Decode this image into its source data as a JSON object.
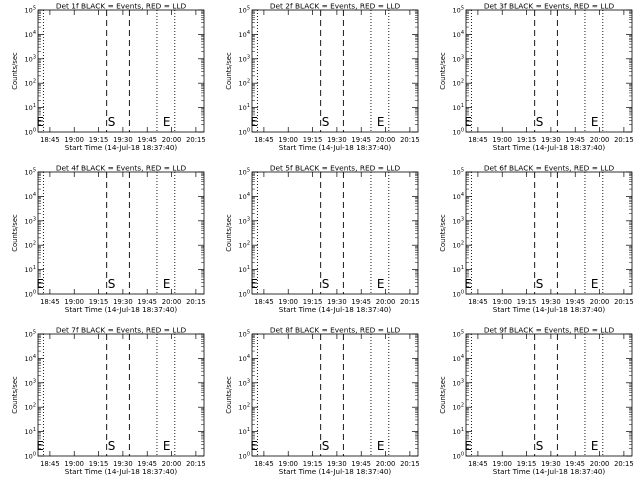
{
  "chart_data": [
    {
      "type": "line",
      "title": "Det 1f BLACK = Events, RED = LLD",
      "xlabel": "Start Time (14-Jul-18 18:37:40)",
      "ylabel": "Counts/sec",
      "xticks": [
        "18:45",
        "19:00",
        "19:15",
        "19:30",
        "19:45",
        "20:00",
        "20:15"
      ],
      "yticks": [
        "10^0",
        "10^1",
        "10^2",
        "10^3",
        "10^4",
        "10^5"
      ],
      "ylim": [
        1,
        100000
      ],
      "yscale": "log",
      "xlim": [
        "18:37:40",
        "20:20:00"
      ],
      "vlines_dotted": [
        "18:41",
        "19:51",
        "20:02"
      ],
      "vlines_dashed": [
        "19:20",
        "19:34"
      ],
      "markers": [
        {
          "label": "E",
          "x": "18:39"
        },
        {
          "label": "S",
          "x": "19:23"
        },
        {
          "label": "E",
          "x": "19:57"
        }
      ],
      "series": []
    },
    {
      "type": "line",
      "title": "Det 2f BLACK = Events, RED = LLD",
      "xlabel": "Start Time (14-Jul-18 18:37:40)",
      "ylabel": "Counts/sec",
      "xticks": [
        "18:45",
        "19:00",
        "19:15",
        "19:30",
        "19:45",
        "20:00",
        "20:15"
      ],
      "yticks": [
        "10^0",
        "10^1",
        "10^2",
        "10^3",
        "10^4",
        "10^5"
      ],
      "ylim": [
        1,
        100000
      ],
      "yscale": "log",
      "xlim": [
        "18:37:40",
        "20:20:00"
      ],
      "vlines_dotted": [
        "18:41",
        "19:51",
        "20:02"
      ],
      "vlines_dashed": [
        "19:20",
        "19:34"
      ],
      "markers": [
        {
          "label": "E",
          "x": "18:39"
        },
        {
          "label": "S",
          "x": "19:23"
        },
        {
          "label": "E",
          "x": "19:57"
        }
      ],
      "series": []
    },
    {
      "type": "line",
      "title": "Det 3f BLACK = Events, RED = LLD",
      "xlabel": "Start Time (14-Jul-18 18:37:40)",
      "ylabel": "Counts/sec",
      "xticks": [
        "18:45",
        "19:00",
        "19:15",
        "19:30",
        "19:45",
        "20:00",
        "20:15"
      ],
      "yticks": [
        "10^0",
        "10^1",
        "10^2",
        "10^3",
        "10^4",
        "10^5"
      ],
      "ylim": [
        1,
        100000
      ],
      "yscale": "log",
      "xlim": [
        "18:37:40",
        "20:20:00"
      ],
      "vlines_dotted": [
        "18:41",
        "19:51",
        "20:02"
      ],
      "vlines_dashed": [
        "19:20",
        "19:34"
      ],
      "markers": [
        {
          "label": "E",
          "x": "18:39"
        },
        {
          "label": "S",
          "x": "19:23"
        },
        {
          "label": "E",
          "x": "19:57"
        }
      ],
      "series": []
    },
    {
      "type": "line",
      "title": "Det 4f BLACK = Events, RED = LLD",
      "xlabel": "Start Time (14-Jul-18 18:37:40)",
      "ylabel": "Counts/sec",
      "xticks": [
        "18:45",
        "19:00",
        "19:15",
        "19:30",
        "19:45",
        "20:00",
        "20:15"
      ],
      "yticks": [
        "10^0",
        "10^1",
        "10^2",
        "10^3",
        "10^4",
        "10^5"
      ],
      "ylim": [
        1,
        100000
      ],
      "yscale": "log",
      "xlim": [
        "18:37:40",
        "20:20:00"
      ],
      "vlines_dotted": [
        "18:41",
        "19:51",
        "20:02"
      ],
      "vlines_dashed": [
        "19:20",
        "19:34"
      ],
      "markers": [
        {
          "label": "E",
          "x": "18:39"
        },
        {
          "label": "S",
          "x": "19:23"
        },
        {
          "label": "E",
          "x": "19:57"
        }
      ],
      "series": []
    },
    {
      "type": "line",
      "title": "Det 5f BLACK = Events, RED = LLD",
      "xlabel": "Start Time (14-Jul-18 18:37:40)",
      "ylabel": "Counts/sec",
      "xticks": [
        "18:45",
        "19:00",
        "19:15",
        "19:30",
        "19:45",
        "20:00",
        "20:15"
      ],
      "yticks": [
        "10^0",
        "10^1",
        "10^2",
        "10^3",
        "10^4",
        "10^5"
      ],
      "ylim": [
        1,
        100000
      ],
      "yscale": "log",
      "xlim": [
        "18:37:40",
        "20:20:00"
      ],
      "vlines_dotted": [
        "18:41",
        "19:51",
        "20:02"
      ],
      "vlines_dashed": [
        "19:20",
        "19:34"
      ],
      "markers": [
        {
          "label": "E",
          "x": "18:39"
        },
        {
          "label": "S",
          "x": "19:23"
        },
        {
          "label": "E",
          "x": "19:57"
        }
      ],
      "series": []
    },
    {
      "type": "line",
      "title": "Det 6f BLACK = Events, RED = LLD",
      "xlabel": "Start Time (14-Jul-18 18:37:40)",
      "ylabel": "Counts/sec",
      "xticks": [
        "18:45",
        "19:00",
        "19:15",
        "19:30",
        "19:45",
        "20:00",
        "20:15"
      ],
      "yticks": [
        "10^0",
        "10^1",
        "10^2",
        "10^3",
        "10^4",
        "10^5"
      ],
      "ylim": [
        1,
        100000
      ],
      "yscale": "log",
      "xlim": [
        "18:37:40",
        "20:20:00"
      ],
      "vlines_dotted": [
        "18:41",
        "19:51",
        "20:02"
      ],
      "vlines_dashed": [
        "19:20",
        "19:34"
      ],
      "markers": [
        {
          "label": "E",
          "x": "18:39"
        },
        {
          "label": "S",
          "x": "19:23"
        },
        {
          "label": "E",
          "x": "19:57"
        }
      ],
      "series": []
    },
    {
      "type": "line",
      "title": "Det 7f BLACK = Events, RED = LLD",
      "xlabel": "Start Time (14-Jul-18 18:37:40)",
      "ylabel": "Counts/sec",
      "xticks": [
        "18:45",
        "19:00",
        "19:15",
        "19:30",
        "19:45",
        "20:00",
        "20:15"
      ],
      "yticks": [
        "10^0",
        "10^1",
        "10^2",
        "10^3",
        "10^4",
        "10^5"
      ],
      "ylim": [
        1,
        100000
      ],
      "yscale": "log",
      "xlim": [
        "18:37:40",
        "20:20:00"
      ],
      "vlines_dotted": [
        "18:41",
        "19:51",
        "20:02"
      ],
      "vlines_dashed": [
        "19:20",
        "19:34"
      ],
      "markers": [
        {
          "label": "E",
          "x": "18:39"
        },
        {
          "label": "S",
          "x": "19:23"
        },
        {
          "label": "E",
          "x": "19:57"
        }
      ],
      "series": []
    },
    {
      "type": "line",
      "title": "Det 8f BLACK = Events, RED = LLD",
      "xlabel": "Start Time (14-Jul-18 18:37:40)",
      "ylabel": "Counts/sec",
      "xticks": [
        "18:45",
        "19:00",
        "19:15",
        "19:30",
        "19:45",
        "20:00",
        "20:15"
      ],
      "yticks": [
        "10^0",
        "10^1",
        "10^2",
        "10^3",
        "10^4",
        "10^5"
      ],
      "ylim": [
        1,
        100000
      ],
      "yscale": "log",
      "xlim": [
        "18:37:40",
        "20:20:00"
      ],
      "vlines_dotted": [
        "18:41",
        "19:51",
        "20:02"
      ],
      "vlines_dashed": [
        "19:20",
        "19:34"
      ],
      "markers": [
        {
          "label": "E",
          "x": "18:39"
        },
        {
          "label": "S",
          "x": "19:23"
        },
        {
          "label": "E",
          "x": "19:57"
        }
      ],
      "series": []
    },
    {
      "type": "line",
      "title": "Det 9f BLACK = Events, RED = LLD",
      "xlabel": "Start Time (14-Jul-18 18:37:40)",
      "ylabel": "Counts/sec",
      "xticks": [
        "18:45",
        "19:00",
        "19:15",
        "19:30",
        "19:45",
        "20:00",
        "20:15"
      ],
      "yticks": [
        "10^0",
        "10^1",
        "10^2",
        "10^3",
        "10^4",
        "10^5"
      ],
      "ylim": [
        1,
        100000
      ],
      "yscale": "log",
      "xlim": [
        "18:37:40",
        "20:20:00"
      ],
      "vlines_dotted": [
        "18:41",
        "19:51",
        "20:02"
      ],
      "vlines_dashed": [
        "19:20",
        "19:34"
      ],
      "markers": [
        {
          "label": "E",
          "x": "18:39"
        },
        {
          "label": "S",
          "x": "19:23"
        },
        {
          "label": "E",
          "x": "19:57"
        }
      ],
      "series": []
    }
  ]
}
